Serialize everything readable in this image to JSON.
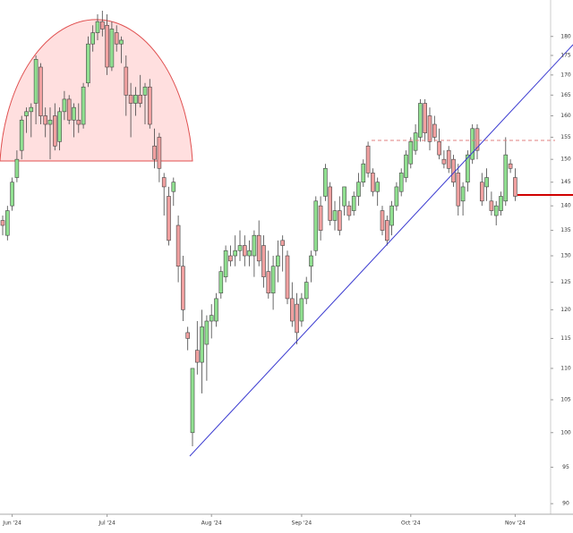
{
  "chart_data": {
    "type": "candlestick",
    "log_scale": true,
    "grid": false,
    "up_color": "#90e090",
    "down_color": "#f0a0a0",
    "ylim": [
      88.6,
      190
    ],
    "yticks": [
      90,
      95,
      100,
      105,
      110,
      115,
      120,
      125,
      130,
      135,
      140,
      145,
      150,
      155,
      160,
      165,
      170,
      175,
      180
    ],
    "categories": [
      null,
      null,
      "Jun '24",
      null,
      null,
      null,
      null,
      null,
      null,
      null,
      null,
      null,
      null,
      null,
      null,
      null,
      null,
      null,
      null,
      null,
      null,
      null,
      "Jul '24",
      null,
      null,
      null,
      null,
      null,
      null,
      null,
      null,
      null,
      null,
      null,
      null,
      null,
      null,
      null,
      null,
      null,
      null,
      null,
      null,
      null,
      "Aug '24",
      null,
      null,
      null,
      null,
      null,
      null,
      null,
      null,
      null,
      null,
      null,
      null,
      null,
      null,
      null,
      null,
      null,
      null,
      "Sep '24",
      null,
      null,
      null,
      null,
      null,
      null,
      null,
      null,
      null,
      null,
      null,
      null,
      null,
      null,
      null,
      null,
      null,
      null,
      null,
      null,
      null,
      null,
      "Oct '24",
      null,
      null,
      null,
      null,
      null,
      null,
      null,
      null,
      null,
      null,
      null,
      null,
      null,
      null,
      null,
      null,
      null,
      null,
      null,
      null,
      null,
      "Nov '24"
    ],
    "open": [
      137,
      134,
      140,
      146,
      152,
      160,
      161,
      163,
      172,
      160,
      158,
      160,
      154,
      161,
      164,
      159,
      159,
      158,
      168,
      178,
      181,
      184,
      183,
      172,
      181,
      178,
      172,
      165,
      163,
      165,
      165,
      167,
      153,
      155,
      146,
      142,
      143,
      136,
      128,
      116,
      100,
      113,
      111,
      114,
      118,
      118,
      123,
      126,
      130,
      130,
      131,
      132,
      130,
      130,
      134,
      132,
      127,
      123,
      128,
      133,
      130,
      122,
      121,
      118,
      122,
      128,
      131,
      140,
      142,
      144,
      137,
      139,
      140,
      140,
      139,
      142,
      145,
      153,
      147,
      143,
      139,
      137,
      136,
      140,
      143,
      146,
      149,
      152,
      155,
      163,
      160,
      158,
      154,
      150,
      152,
      150,
      147,
      141,
      145,
      150,
      157,
      145,
      144,
      141,
      138,
      139,
      141,
      149,
      146
    ],
    "high": [
      138,
      140,
      146,
      152,
      160,
      162,
      163,
      175,
      173,
      162,
      162,
      163,
      162,
      166,
      165,
      163,
      163,
      168,
      180,
      183,
      186,
      187,
      186,
      184,
      183,
      180,
      175,
      168,
      167,
      170,
      168,
      169,
      157,
      156,
      147,
      144,
      146,
      138,
      130,
      117,
      110,
      118,
      120,
      119,
      121,
      123,
      128,
      132,
      132,
      134,
      135,
      134,
      133,
      135,
      137,
      134,
      131,
      130,
      133,
      134,
      131,
      125,
      123,
      123,
      126,
      131,
      142,
      142,
      149,
      145,
      141,
      142,
      144,
      141,
      143,
      147,
      150,
      154,
      148,
      146,
      140,
      138,
      141,
      145,
      148,
      152,
      155,
      158,
      164,
      164,
      162,
      160,
      157,
      152,
      153,
      151,
      149,
      145,
      152,
      158,
      158,
      147,
      148,
      143,
      141,
      143,
      155,
      150,
      148
    ],
    "low": [
      134,
      133,
      139,
      145,
      150,
      156,
      155,
      158,
      158,
      155,
      150,
      152,
      152,
      159,
      158,
      155,
      156,
      157,
      167,
      176,
      179,
      180,
      170,
      171,
      176,
      173,
      160,
      155,
      160,
      162,
      158,
      157,
      148,
      145,
      138,
      132,
      140,
      125,
      118,
      113,
      98,
      109,
      106,
      108,
      115,
      117,
      122,
      125,
      128,
      128,
      129,
      128,
      128,
      126,
      128,
      124,
      122,
      120,
      125,
      127,
      121,
      117,
      114,
      117,
      121,
      125,
      130,
      133,
      141,
      136,
      135,
      134,
      138,
      137,
      138,
      140,
      144,
      146,
      142,
      140,
      134,
      132,
      134,
      139,
      142,
      145,
      148,
      151,
      154,
      154,
      152,
      154,
      150,
      148,
      147,
      144,
      138,
      138,
      143,
      149,
      150,
      140,
      141,
      138,
      136,
      138,
      140,
      147,
      141
    ],
    "close": [
      136,
      139,
      145,
      150,
      159,
      161,
      162,
      174,
      160,
      158,
      159,
      153,
      161,
      164,
      159,
      162,
      158,
      167,
      178,
      181,
      184,
      182,
      172,
      182,
      178,
      179,
      165,
      163,
      165,
      163,
      167,
      158,
      150,
      148,
      144,
      133,
      145,
      128,
      120,
      115,
      110,
      111,
      117,
      118,
      119,
      122,
      127,
      131,
      129,
      131,
      132,
      130,
      131,
      134,
      129,
      126,
      123,
      128,
      130,
      132,
      122,
      118,
      116,
      122,
      125,
      130,
      141,
      135,
      148,
      137,
      139,
      135,
      144,
      138,
      142,
      145,
      149,
      147,
      143,
      145,
      135,
      133,
      140,
      144,
      147,
      151,
      154,
      156,
      163,
      156,
      154,
      155,
      151,
      149,
      148,
      145,
      140,
      144,
      151,
      157,
      152,
      141,
      146,
      139,
      140,
      142,
      151,
      148,
      142
    ]
  }
}
